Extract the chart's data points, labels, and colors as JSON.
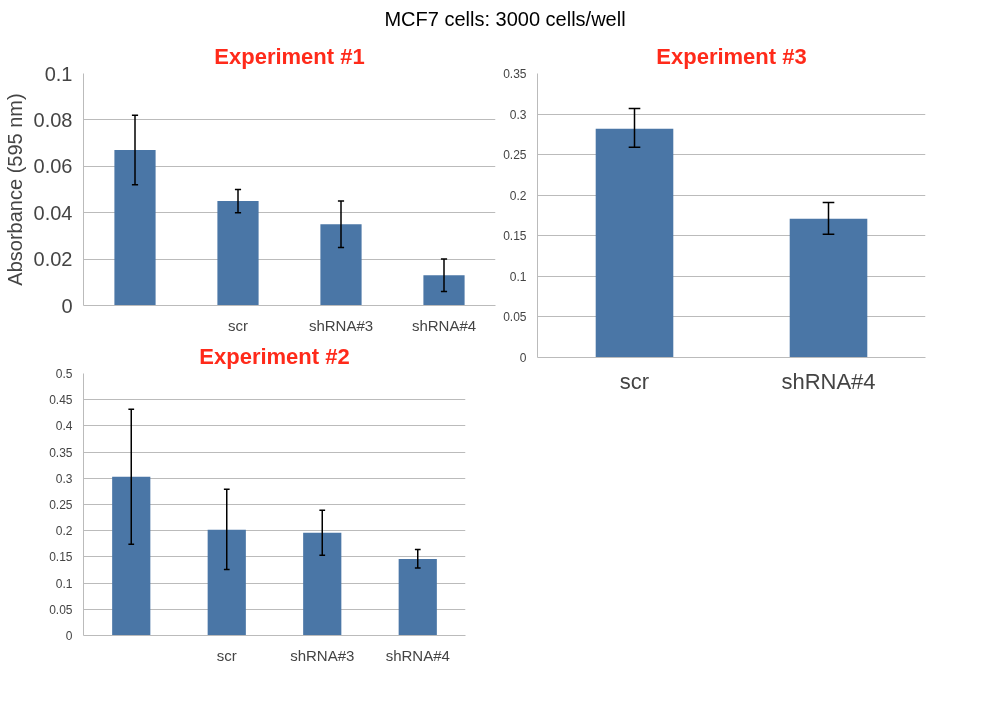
{
  "chart_data": [
    {
      "type": "bar",
      "title": "Experiment #1",
      "ylabel": "Absorbance (595 nm)",
      "annotations": [
        "MCF7 cells: 3000 cells/well"
      ],
      "categories": [
        null,
        "scr",
        "shRNA#3",
        "shRNA#4"
      ],
      "values": [
        0.067,
        0.045,
        0.035,
        0.013
      ],
      "errors": [
        [
          0.052,
          0.082
        ],
        [
          0.04,
          0.05
        ],
        [
          0.025,
          0.045
        ],
        [
          0.006,
          0.02
        ]
      ],
      "color": "#4a76a6",
      "ylim": [
        0,
        0.1
      ],
      "yticks": [
        0,
        0.02,
        0.04,
        0.06,
        0.08,
        0.1
      ],
      "grid": "y"
    },
    {
      "type": "bar",
      "title": "Experiment #3",
      "categories": [
        "scr",
        "shRNA#4"
      ],
      "values": [
        0.282,
        0.171
      ],
      "errors": [
        [
          0.259,
          0.307
        ],
        [
          0.152,
          0.191
        ]
      ],
      "color": "#4a76a6",
      "ylim": [
        0,
        0.35
      ],
      "yticks": [
        0,
        0.05,
        0.1,
        0.15,
        0.2,
        0.25,
        0.3,
        0.35
      ],
      "grid": "y"
    },
    {
      "type": "bar",
      "title": "Experiment #2",
      "categories": [
        null,
        "scr",
        "shRNA#3",
        "shRNA#4"
      ],
      "values": [
        0.303,
        0.202,
        0.196,
        0.146
      ],
      "errors": [
        [
          0.174,
          0.432
        ],
        [
          0.126,
          0.279
        ],
        [
          0.153,
          0.239
        ],
        [
          0.129,
          0.164
        ]
      ],
      "color": "#4a76a6",
      "ylim": [
        0,
        0.5
      ],
      "yticks": [
        0,
        0.05,
        0.1,
        0.15,
        0.2,
        0.25,
        0.3,
        0.35,
        0.4,
        0.45,
        0.5
      ],
      "grid": "y"
    }
  ]
}
